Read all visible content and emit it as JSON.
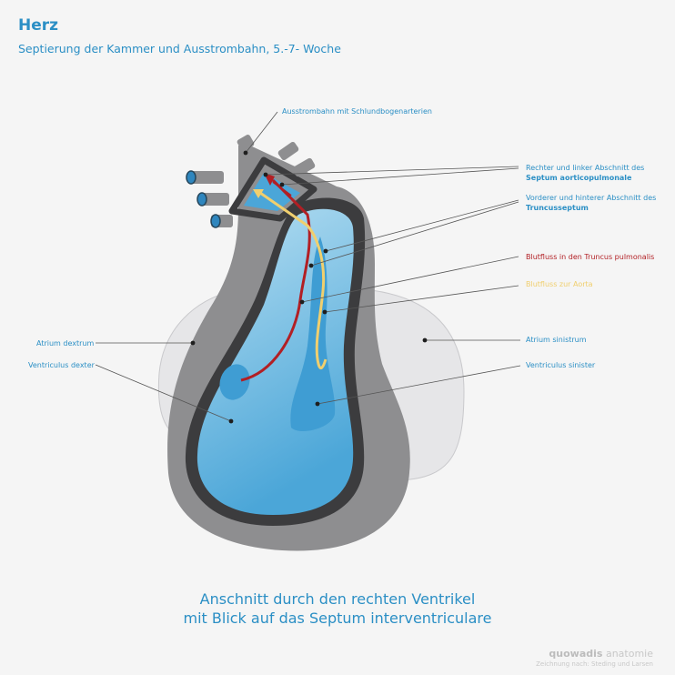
{
  "header": {
    "title": "Herz",
    "subtitle": "Septierung der Kammer und Ausstrombahn, 5.-7- Woche"
  },
  "labels": {
    "ausstrombahn": "Ausstrombahn mit Schlundbogenarterien",
    "septum_aorticopulmonale_line1": "Rechter und linker Abschnitt des",
    "septum_aorticopulmonale_line2": "Septum aorticopulmonale",
    "truncusseptum_line1": "Vorderer und hinterer Abschnitt des",
    "truncusseptum_line2": "Truncusseptum",
    "blutfluss_truncus": "Blutfluss in den Truncus pulmonalis",
    "blutfluss_aorta": "Blutfluss zur Aorta",
    "atrium_dextrum": "Atrium dextrum",
    "ventriculus_dexter": "Ventriculus dexter",
    "atrium_sinistrum": "Atrium sinistrum",
    "ventriculus_sinister": "Ventriculus sinister"
  },
  "caption": {
    "line1": "Anschnitt durch den rechten Ventrikel",
    "line2": "mit Blick auf das Septum interventriculare"
  },
  "logo": {
    "brand_bold": "quowadis",
    "brand_rest": " anatomie",
    "credit": "Zeichnung nach: Steding und Larsen"
  },
  "colors": {
    "accent": "#2b8fc5",
    "blood_pulmonalis": "#b21f24",
    "blood_aorta": "#f0cf6e",
    "heart_wall": "#8e8e90",
    "heart_outline": "#3c3c3e",
    "atrium": "#e6e6e8"
  }
}
